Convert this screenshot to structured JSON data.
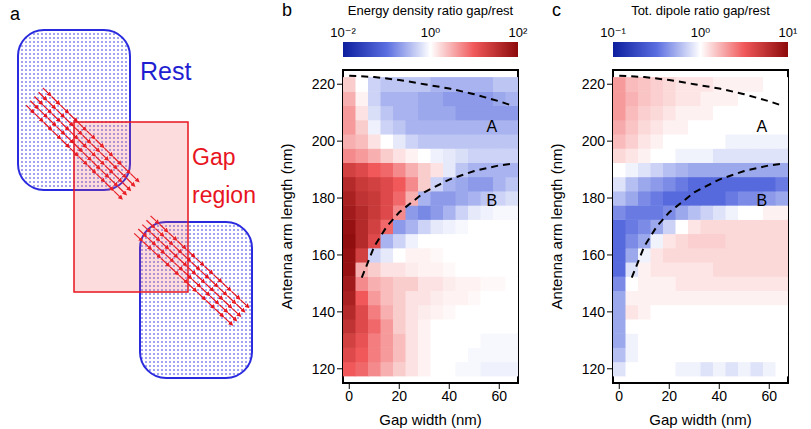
{
  "panel_a": {
    "panel_label": "a",
    "rest_label": "Rest",
    "gap_label": "Gap region"
  },
  "chart_data": [
    {
      "type": "heatmap",
      "panel_label": "b",
      "title": "Energy density ratio gap/rest",
      "x_label": "Gap width (nm)",
      "y_label": "Antenna arm length (nm)",
      "x": [
        0,
        5,
        10,
        15,
        20,
        25,
        30,
        35,
        40,
        45,
        50,
        55,
        60,
        65
      ],
      "y": [
        120,
        125,
        130,
        135,
        140,
        145,
        150,
        155,
        160,
        165,
        170,
        175,
        180,
        185,
        190,
        195,
        200,
        205,
        210,
        215,
        220
      ],
      "cells": [
        [
          10,
          8,
          5,
          3,
          2,
          1.5,
          1.2,
          1,
          1,
          0.9,
          0.9,
          0.8,
          0.8,
          0.8
        ],
        [
          15,
          10,
          6,
          4,
          2.5,
          1.5,
          1.2,
          1,
          1,
          1,
          0.9,
          0.9,
          0.9,
          0.9
        ],
        [
          20,
          12,
          6,
          4,
          2.5,
          1.5,
          1.2,
          1,
          1,
          1,
          1,
          0.9,
          0.9,
          0.9
        ],
        [
          30,
          15,
          8,
          4,
          2,
          1.5,
          1.2,
          1,
          1,
          1,
          1,
          1,
          1,
          1
        ],
        [
          40,
          15,
          6,
          3,
          2,
          1.5,
          1.3,
          1.2,
          1.1,
          1,
          1,
          1,
          1,
          1
        ],
        [
          50,
          10,
          4,
          2.5,
          2,
          1.5,
          1.5,
          1.3,
          1.2,
          1.2,
          1.1,
          1,
          1,
          1
        ],
        [
          60,
          5,
          3,
          2.5,
          2,
          2,
          1.5,
          1.5,
          1.3,
          1.2,
          1.2,
          1.1,
          1.1,
          1
        ],
        [
          80,
          3,
          2,
          1.5,
          1.5,
          1.3,
          1.2,
          1.2,
          1.1,
          1,
          1,
          1,
          1,
          1
        ],
        [
          80,
          20,
          0.5,
          0.7,
          1,
          1.2,
          1.2,
          1.1,
          1,
          1,
          1,
          1,
          1,
          1
        ],
        [
          90,
          40,
          15,
          0.3,
          0.5,
          0.8,
          1,
          1,
          1,
          1,
          1,
          1,
          1,
          1
        ],
        [
          80,
          40,
          20,
          8,
          0.2,
          0.3,
          0.5,
          0.7,
          0.8,
          0.9,
          1,
          1,
          1,
          1
        ],
        [
          60,
          40,
          25,
          15,
          5,
          0.2,
          0.15,
          0.2,
          0.3,
          0.5,
          0.7,
          0.8,
          0.9,
          0.9
        ],
        [
          50,
          30,
          25,
          15,
          8,
          3,
          0.3,
          0.2,
          0.2,
          0.25,
          0.3,
          0.4,
          0.5,
          0.6
        ],
        [
          40,
          25,
          20,
          15,
          10,
          5,
          2,
          0.5,
          0.3,
          0.25,
          0.2,
          0.2,
          0.3,
          0.4
        ],
        [
          20,
          15,
          10,
          8,
          5,
          3,
          2,
          1.5,
          0.7,
          0.4,
          0.3,
          0.3,
          0.3,
          0.3
        ],
        [
          5,
          4,
          3,
          2,
          1.5,
          1.2,
          1,
          0.8,
          0.7,
          0.6,
          0.5,
          0.5,
          0.5,
          0.5
        ],
        [
          3,
          2.5,
          1.5,
          1,
          0.7,
          0.5,
          0.4,
          0.4,
          0.4,
          0.4,
          0.4,
          0.4,
          0.4,
          0.4
        ],
        [
          4,
          2,
          0.8,
          0.5,
          0.4,
          0.3,
          0.3,
          0.3,
          0.3,
          0.3,
          0.3,
          0.3,
          0.3,
          0.3
        ],
        [
          4,
          1.5,
          0.6,
          0.4,
          0.3,
          0.3,
          0.25,
          0.25,
          0.25,
          0.2,
          0.2,
          0.2,
          0.2,
          0.2
        ],
        [
          3,
          1.2,
          0.5,
          0.3,
          0.3,
          0.3,
          0.25,
          0.25,
          0.2,
          0.2,
          0.2,
          0.2,
          0.25,
          0.3
        ],
        [
          2,
          1,
          0.5,
          0.4,
          0.4,
          0.4,
          0.4,
          0.3,
          0.3,
          0.3,
          0.3,
          0.3,
          0.4,
          0.4
        ]
      ],
      "xlim": [
        -2.5,
        67.5
      ],
      "ylim": [
        115,
        225
      ],
      "xticks": [
        0,
        20,
        40,
        60
      ],
      "yticks": [
        120,
        140,
        160,
        180,
        200,
        220
      ],
      "colorbar": {
        "range": [
          0.01,
          100
        ],
        "log": true,
        "ticks": [
          {
            "value": 0.01,
            "label": "10⁻²"
          },
          {
            "value": 1,
            "label": "10⁰"
          },
          {
            "value": 100,
            "label": "10²"
          }
        ]
      },
      "curves": [
        {
          "x": [
            0,
            10,
            20,
            30,
            40,
            50,
            60,
            65
          ],
          "y": [
            223,
            222.5,
            221.5,
            220,
            218.5,
            216.5,
            214,
            212.5
          ],
          "line_style": "dashed"
        },
        {
          "x": [
            5,
            10,
            15,
            20,
            30,
            40,
            50,
            60,
            65
          ],
          "y": [
            152,
            163,
            170,
            175,
            182,
            186.5,
            189.5,
            191.5,
            192
          ],
          "line_style": "dashed"
        }
      ],
      "annotations": [
        {
          "text": "A",
          "x": 57,
          "y": 205
        },
        {
          "text": "B",
          "x": 57,
          "y": 179
        }
      ]
    },
    {
      "type": "heatmap",
      "panel_label": "c",
      "title": "Tot. dipole  ratio gap/rest",
      "x_label": "Gap width (nm)",
      "y_label": "Antenna arm length (nm)",
      "x": [
        0,
        5,
        10,
        15,
        20,
        25,
        30,
        35,
        40,
        45,
        50,
        55,
        60,
        65
      ],
      "y": [
        120,
        125,
        130,
        135,
        140,
        145,
        150,
        155,
        160,
        165,
        170,
        175,
        180,
        185,
        190,
        195,
        200,
        205,
        210,
        215,
        220
      ],
      "cells": [
        [
          0.8,
          1,
          1,
          1,
          1,
          0.9,
          0.9,
          0.8,
          0.9,
          0.8,
          0.9,
          0.8,
          0.9,
          1
        ],
        [
          0.6,
          0.9,
          1,
          1,
          1,
          1,
          1,
          1,
          1,
          1,
          1,
          1,
          1,
          1
        ],
        [
          0.5,
          0.9,
          1,
          1,
          1,
          1,
          1,
          1,
          1,
          1,
          1,
          1,
          1,
          1
        ],
        [
          0.5,
          1,
          1,
          1,
          1,
          1,
          1,
          1,
          1,
          1,
          1,
          1,
          1,
          1
        ],
        [
          0.5,
          1.2,
          1.1,
          1,
          1,
          1,
          1,
          1,
          1,
          1,
          1,
          1,
          1,
          1
        ],
        [
          0.5,
          1.1,
          1.1,
          1.1,
          1.1,
          1.1,
          1.1,
          1.1,
          1.1,
          1.1,
          1.1,
          1.1,
          1.1,
          1.1
        ],
        [
          0.4,
          1,
          1.1,
          1.1,
          1.1,
          1.2,
          1.2,
          1.2,
          1.2,
          1.2,
          1.2,
          1.2,
          1.2,
          1.2
        ],
        [
          0.3,
          0.8,
          1.1,
          1.2,
          1.2,
          1.2,
          1.2,
          1.2,
          1.3,
          1.3,
          1.3,
          1.3,
          1.3,
          1.3
        ],
        [
          0.3,
          0.5,
          0.9,
          1.2,
          1.3,
          1.3,
          1.3,
          1.3,
          1.3,
          1.3,
          1.3,
          1.3,
          1.3,
          1.3
        ],
        [
          0.3,
          0.4,
          0.5,
          0.9,
          1.2,
          1.3,
          1.4,
          1.4,
          1.4,
          1.3,
          1.3,
          1.3,
          1.3,
          1.3
        ],
        [
          0.3,
          0.35,
          0.4,
          0.5,
          0.7,
          1,
          1.2,
          1.3,
          1.3,
          1.3,
          1.3,
          1.3,
          1.3,
          1.3
        ],
        [
          0.4,
          0.35,
          0.35,
          0.35,
          0.4,
          0.5,
          0.6,
          0.7,
          0.8,
          0.9,
          1,
          1,
          1.1,
          1.1
        ],
        [
          0.6,
          0.5,
          0.4,
          0.35,
          0.3,
          0.3,
          0.3,
          0.3,
          0.3,
          0.35,
          0.4,
          0.4,
          0.45,
          0.5
        ],
        [
          0.8,
          0.6,
          0.5,
          0.45,
          0.4,
          0.35,
          0.3,
          0.3,
          0.3,
          0.3,
          0.3,
          0.3,
          0.3,
          0.35
        ],
        [
          1,
          0.9,
          0.8,
          0.7,
          0.6,
          0.55,
          0.5,
          0.5,
          0.5,
          0.5,
          0.5,
          0.5,
          0.5,
          0.5
        ],
        [
          1.3,
          1.2,
          1.1,
          1,
          1,
          0.9,
          0.9,
          0.9,
          0.8,
          0.8,
          0.8,
          0.8,
          0.8,
          0.8
        ],
        [
          1.6,
          1.4,
          1.2,
          1.1,
          1,
          1,
          1,
          1,
          1,
          0.9,
          0.9,
          0.9,
          0.9,
          0.9
        ],
        [
          1.8,
          1.5,
          1.3,
          1.2,
          1.1,
          1.1,
          1,
          1,
          1,
          1,
          1,
          1,
          1,
          1
        ],
        [
          2,
          1.6,
          1.4,
          1.3,
          1.2,
          1.1,
          1.1,
          1.1,
          1,
          1,
          1,
          1,
          1,
          1
        ],
        [
          2,
          1.7,
          1.5,
          1.4,
          1.3,
          1.2,
          1.2,
          1.1,
          1.1,
          1.1,
          1,
          1,
          1,
          1
        ],
        [
          2,
          1.6,
          1.5,
          1.4,
          1.3,
          1.2,
          1.2,
          1.2,
          1.1,
          1.1,
          1.1,
          1.1,
          1,
          1
        ]
      ],
      "xlim": [
        -2.5,
        67.5
      ],
      "ylim": [
        115,
        225
      ],
      "xticks": [
        0,
        20,
        40,
        60
      ],
      "yticks": [
        120,
        140,
        160,
        180,
        200,
        220
      ],
      "colorbar": {
        "range": [
          0.1,
          10
        ],
        "log": true,
        "ticks": [
          {
            "value": 0.1,
            "label": "10⁻¹"
          },
          {
            "value": 1,
            "label": "10⁰"
          },
          {
            "value": 10,
            "label": "10¹"
          }
        ]
      },
      "curves": [
        {
          "x": [
            0,
            10,
            20,
            30,
            40,
            50,
            60,
            65
          ],
          "y": [
            223,
            222.5,
            221.5,
            220,
            218.5,
            216.5,
            214,
            212.5
          ],
          "line_style": "dashed"
        },
        {
          "x": [
            5,
            10,
            15,
            20,
            30,
            40,
            50,
            60,
            65
          ],
          "y": [
            152,
            163,
            170,
            175,
            182,
            186.5,
            189.5,
            191.5,
            192
          ],
          "line_style": "dashed"
        }
      ],
      "annotations": [
        {
          "text": "A",
          "x": 57,
          "y": 205
        },
        {
          "text": "B",
          "x": 57,
          "y": 179
        }
      ]
    }
  ]
}
